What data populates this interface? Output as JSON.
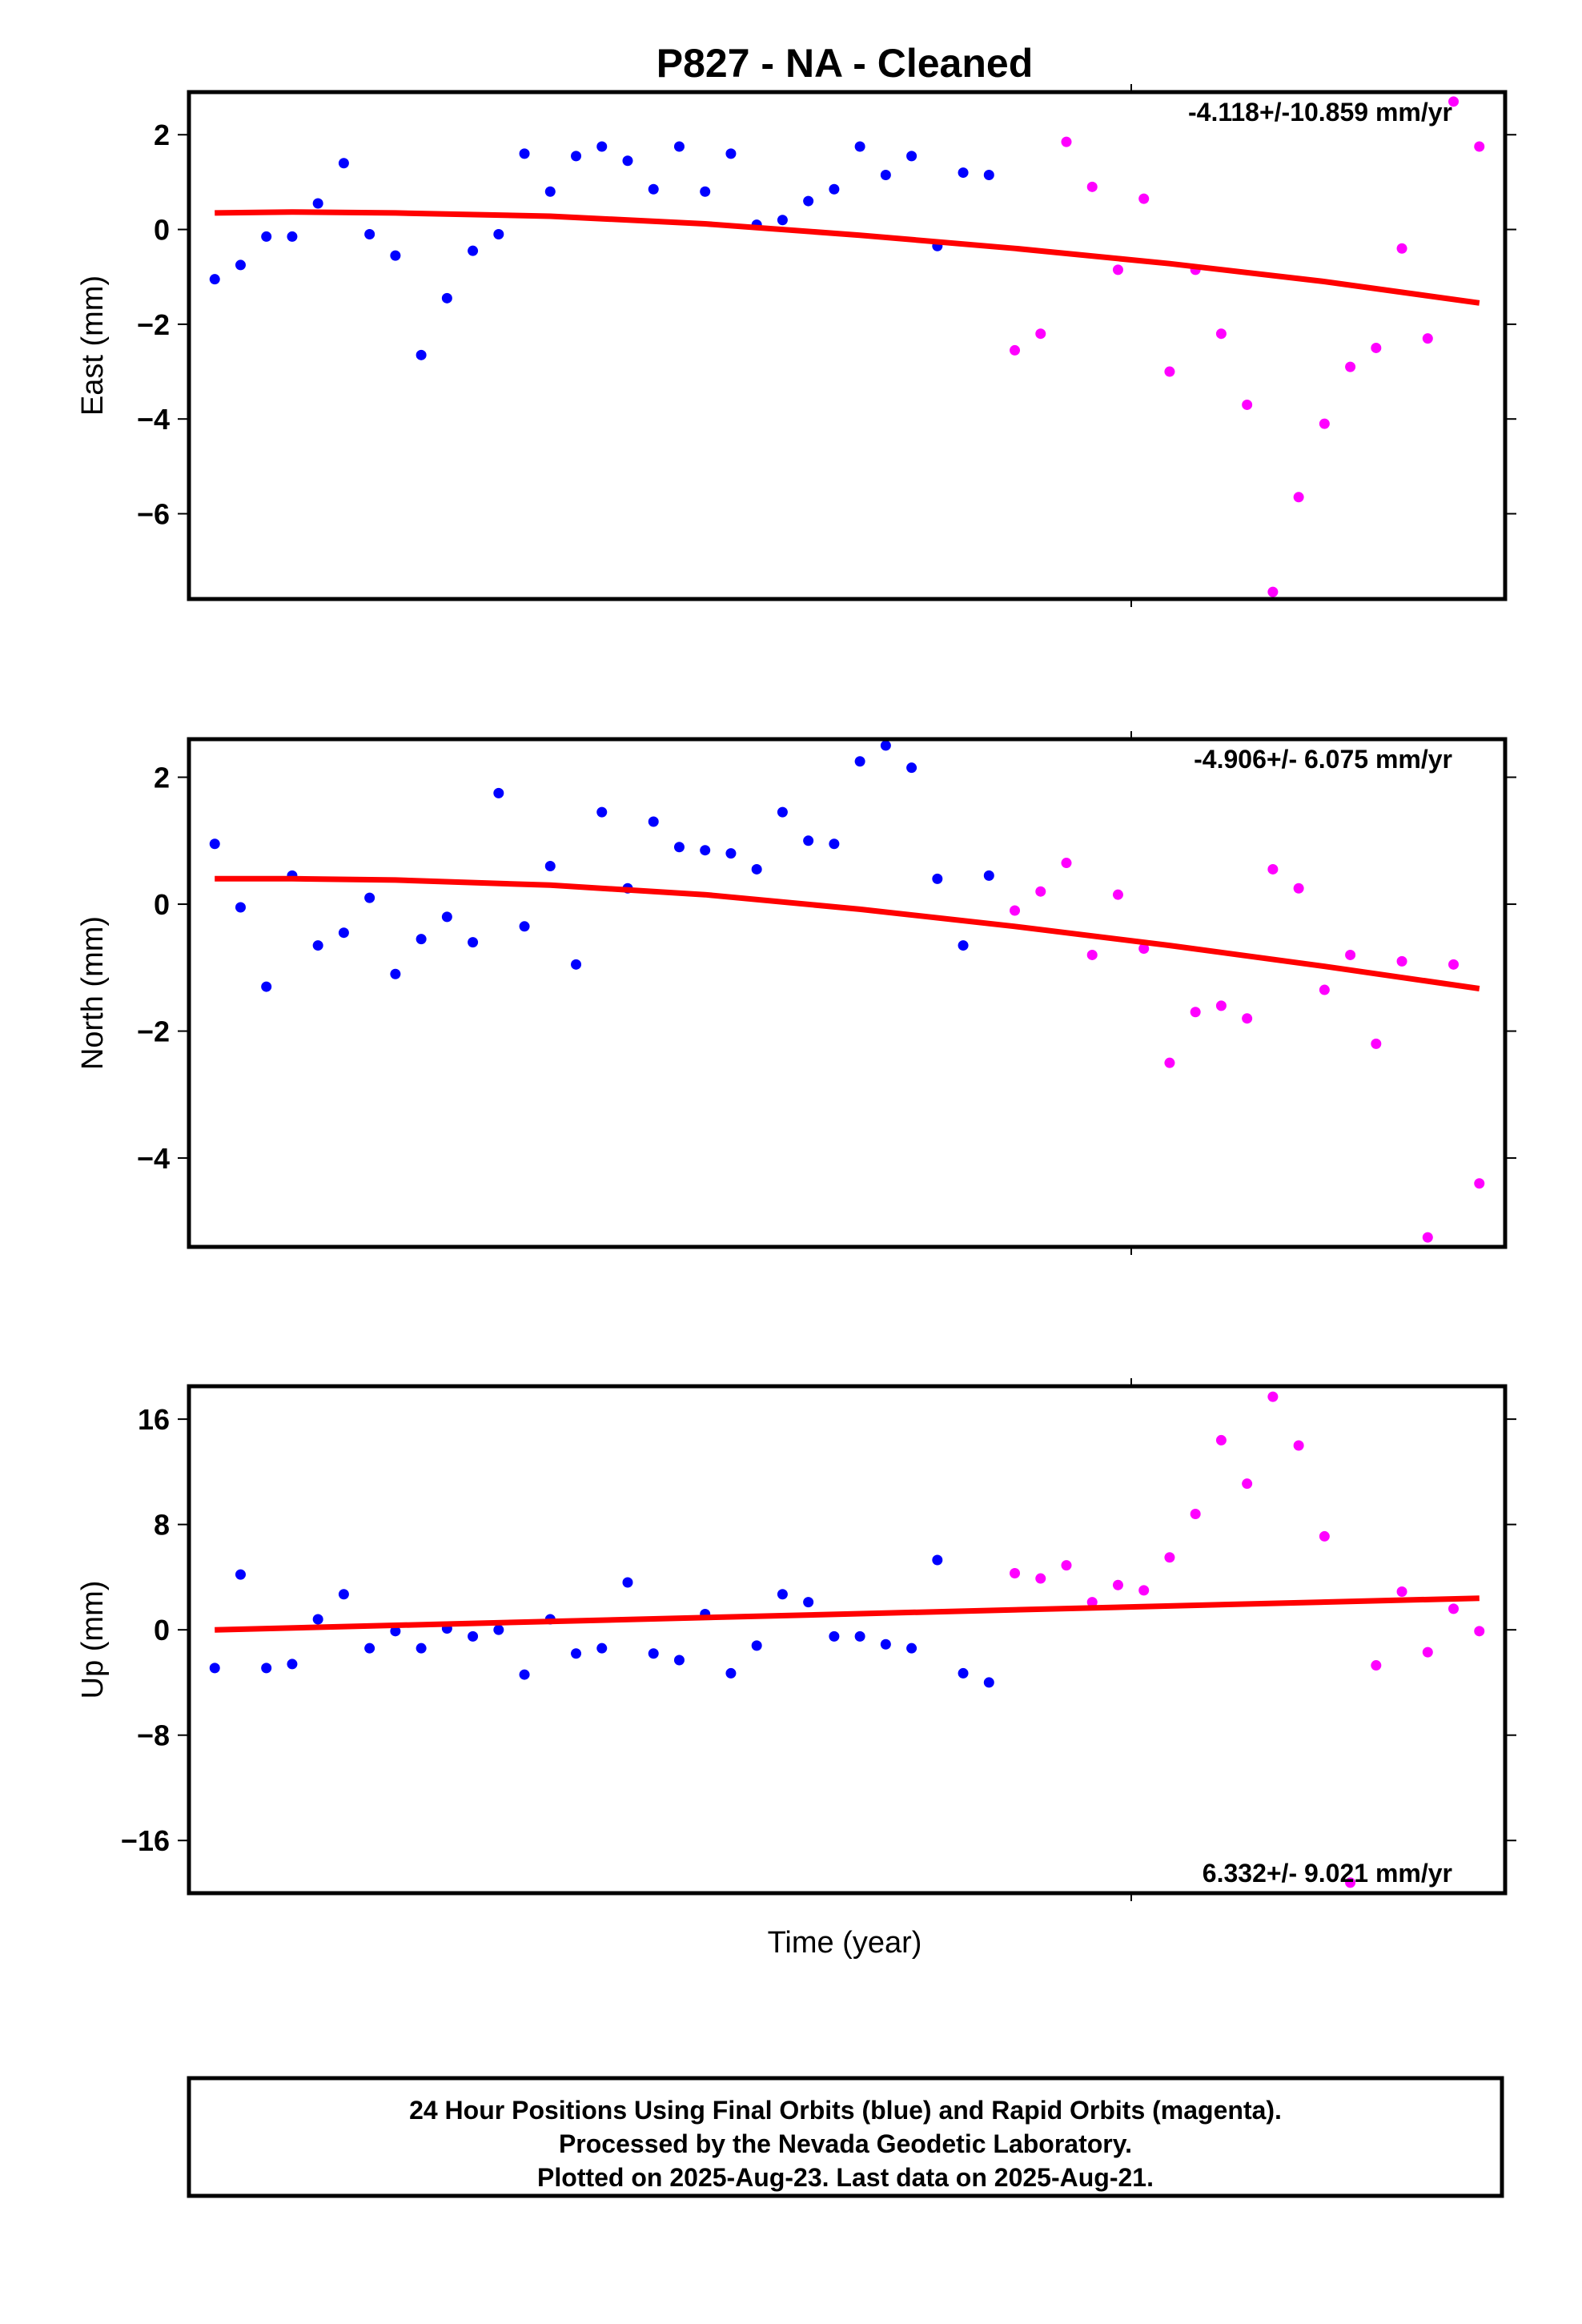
{
  "title": "P827  - NA - Cleaned",
  "xlabel": "Time (year)",
  "footer": {
    "line1": "24 Hour Positions Using Final Orbits (blue) and Rapid Orbits (magenta).",
    "line2": "Processed by the Nevada Geodetic Laboratory.",
    "line3": "Plotted on 2025-Aug-23. Last data on 2025-Aug-21."
  },
  "colors": {
    "final": "#0000ff",
    "rapid": "#ff00ff",
    "trend": "#ff0000",
    "axes": "#000000"
  },
  "chart_data": [
    {
      "type": "scatter",
      "ylabel": "East (mm)",
      "rate_label": "-4.118+/-10.859 mm/yr",
      "rate_position": "top-right",
      "ylim": [
        -7.8,
        2.9
      ],
      "yticks": [
        2,
        0,
        -2,
        -4,
        -6
      ],
      "ytick_labels": [
        "2",
        "0",
        "−2",
        "−4",
        "−6"
      ],
      "xlim": [
        0,
        51
      ],
      "series": [
        {
          "orbit": "final",
          "x": [
            1,
            2,
            3,
            4,
            5,
            6,
            7,
            8,
            9,
            10,
            11,
            12,
            13,
            14,
            15,
            16,
            17,
            18,
            19,
            20,
            21,
            22,
            23,
            24,
            25,
            26,
            27,
            28,
            29,
            30,
            31,
            32
          ],
          "y": [
            -1.05,
            -0.75,
            -0.15,
            -0.15,
            0.55,
            1.4,
            -0.1,
            -0.55,
            -2.65,
            -1.45,
            -0.45,
            -0.1,
            1.6,
            0.8,
            1.55,
            1.75,
            1.45,
            0.85,
            1.75,
            0.8,
            1.6,
            0.1,
            0.2,
            0.6,
            0.85,
            1.75,
            1.15,
            1.55,
            -0.35,
            1.2,
            1.15,
            null
          ]
        },
        {
          "orbit": "rapid",
          "x": [
            32,
            33,
            34,
            35,
            36,
            37,
            38,
            39,
            40,
            41,
            42,
            43,
            44,
            45,
            46,
            47,
            48,
            49,
            50
          ],
          "y": [
            -2.55,
            -2.2,
            1.85,
            0.9,
            -0.85,
            0.65,
            -3.0,
            -0.85,
            -2.2,
            -3.7,
            -7.65,
            -5.65,
            -4.1,
            -2.9,
            -2.5,
            -0.4,
            -2.3,
            2.7,
            1.75
          ]
        }
      ],
      "trend": {
        "x": [
          1,
          4,
          8,
          14,
          20,
          26,
          32,
          38,
          44,
          50
        ],
        "y": [
          0.35,
          0.37,
          0.35,
          0.28,
          0.12,
          -0.12,
          -0.4,
          -0.72,
          -1.1,
          -1.55
        ]
      }
    },
    {
      "type": "scatter",
      "ylabel": "North (mm)",
      "rate_label": "-4.906+/- 6.075 mm/yr",
      "rate_position": "top-right",
      "ylim": [
        -5.4,
        2.6
      ],
      "yticks": [
        2,
        0,
        -2,
        -4
      ],
      "ytick_labels": [
        "2",
        "0",
        "−2",
        "−4"
      ],
      "xlim": [
        0,
        51
      ],
      "series": [
        {
          "orbit": "final",
          "x": [
            1,
            2,
            3,
            4,
            5,
            6,
            7,
            8,
            9,
            10,
            11,
            12,
            13,
            14,
            15,
            16,
            17,
            18,
            19,
            20,
            21,
            22,
            23,
            24,
            25,
            26,
            27,
            28,
            29,
            30,
            31
          ],
          "y": [
            0.95,
            -0.05,
            -1.3,
            0.45,
            -0.65,
            -0.45,
            0.1,
            -1.1,
            -0.55,
            -0.2,
            -0.6,
            1.75,
            -0.35,
            0.6,
            -0.95,
            1.45,
            0.25,
            1.3,
            0.9,
            0.85,
            0.8,
            0.55,
            1.45,
            1.0,
            0.95,
            2.25,
            2.5,
            2.15,
            0.4,
            -0.65,
            0.45
          ]
        },
        {
          "orbit": "rapid",
          "x": [
            32,
            33,
            34,
            35,
            36,
            37,
            38,
            39,
            40,
            41,
            42,
            43,
            44,
            45,
            46,
            47,
            48,
            49,
            50
          ],
          "y": [
            -0.1,
            0.2,
            0.65,
            -0.8,
            0.15,
            -0.7,
            -2.5,
            -1.7,
            -1.6,
            -1.8,
            0.55,
            0.25,
            -1.35,
            -0.8,
            -2.2,
            -0.9,
            -5.25,
            -0.95,
            -4.4
          ]
        }
      ],
      "trend": {
        "x": [
          1,
          4,
          8,
          14,
          20,
          26,
          32,
          38,
          44,
          50
        ],
        "y": [
          0.4,
          0.4,
          0.38,
          0.3,
          0.15,
          -0.08,
          -0.35,
          -0.65,
          -0.98,
          -1.33
        ]
      }
    },
    {
      "type": "scatter",
      "ylabel": "Up (mm)",
      "rate_label": "6.332+/- 9.021 mm/yr",
      "rate_position": "bottom-right",
      "ylim": [
        -20,
        18.5
      ],
      "yticks": [
        16,
        8,
        0,
        -8,
        -16
      ],
      "ytick_labels": [
        "16",
        "8",
        "0",
        "−8",
        "−16"
      ],
      "xlim": [
        0,
        51
      ],
      "series": [
        {
          "orbit": "final",
          "x": [
            1,
            2,
            3,
            4,
            5,
            6,
            7,
            8,
            9,
            10,
            11,
            12,
            13,
            14,
            15,
            16,
            17,
            18,
            19,
            20,
            21,
            22,
            23,
            24,
            25,
            26,
            27,
            28,
            29,
            30,
            31
          ],
          "y": [
            -2.9,
            4.2,
            -2.9,
            -2.6,
            0.8,
            2.7,
            -1.4,
            -0.1,
            -1.4,
            0.1,
            -0.5,
            0.0,
            -3.4,
            0.8,
            -1.8,
            -1.4,
            3.6,
            -1.8,
            -2.3,
            1.2,
            -3.3,
            -1.2,
            2.7,
            2.1,
            -0.5,
            -0.5,
            -1.1,
            -1.4,
            5.3,
            -3.3,
            -4.0
          ]
        },
        {
          "orbit": "rapid",
          "x": [
            32,
            33,
            34,
            35,
            36,
            37,
            38,
            39,
            40,
            41,
            42,
            43,
            44,
            45,
            46,
            47,
            48,
            49,
            50
          ],
          "y": [
            4.3,
            3.9,
            4.9,
            2.1,
            3.4,
            3.0,
            5.5,
            8.8,
            14.4,
            11.1,
            17.7,
            14.0,
            7.1,
            -19.2,
            -2.7,
            2.9,
            -1.7,
            1.6,
            -0.1
          ]
        }
      ],
      "trend": {
        "x": [
          1,
          50
        ],
        "y": [
          0.0,
          2.4
        ]
      }
    }
  ]
}
